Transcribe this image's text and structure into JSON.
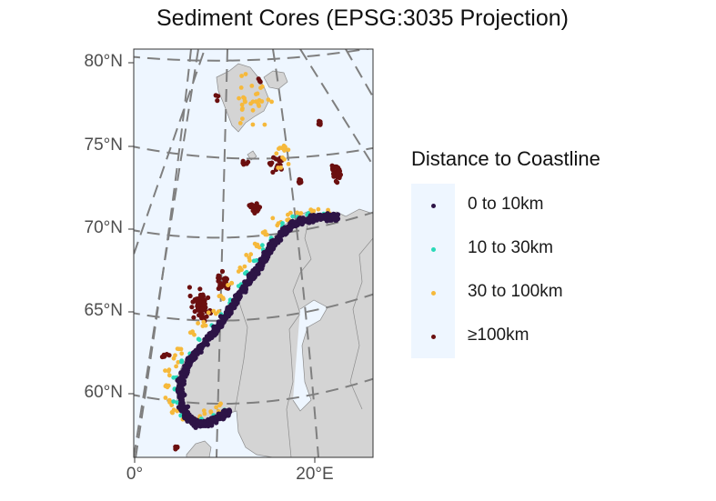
{
  "title": "Sediment Cores (EPSG:3035 Projection)",
  "axes": {
    "y_ticks": [
      {
        "label": "80°N",
        "lat": 80
      },
      {
        "label": "75°N",
        "lat": 75
      },
      {
        "label": "70°N",
        "lat": 70
      },
      {
        "label": "65°N",
        "lat": 65
      },
      {
        "label": "60°N",
        "lat": 60
      }
    ],
    "x_ticks": [
      {
        "label": "0°",
        "lon": 0
      },
      {
        "label": "20°E",
        "lon": 20
      }
    ]
  },
  "legend": {
    "title": "Distance to Coastline",
    "items": [
      {
        "label": "0 to 10km",
        "color": "#2d1446"
      },
      {
        "label": "10 to 30km",
        "color": "#2ad9b8"
      },
      {
        "label": "30 to 100km",
        "color": "#f6b93b"
      },
      {
        "label": "≥100km",
        "color": "#6b0f0f"
      }
    ]
  },
  "colors": {
    "ocean": "#eef6ff",
    "land": "#d4d4d4",
    "graticule": "#7f7f7f"
  }
}
